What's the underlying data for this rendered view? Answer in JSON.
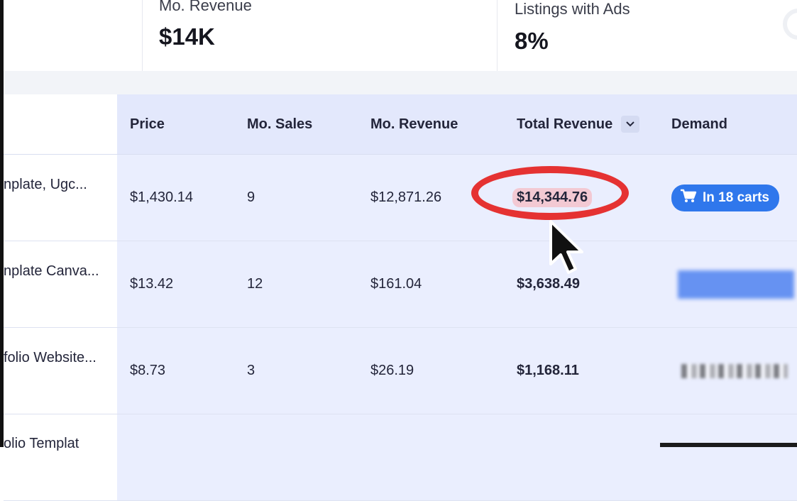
{
  "stats": [
    {
      "label": "Mo. Revenue",
      "value": "$14K"
    },
    {
      "label": "Listings with Ads",
      "value": "8%"
    }
  ],
  "table": {
    "columns": {
      "price": "Price",
      "sales": "Mo. Sales",
      "revenue": "Mo. Revenue",
      "total": "Total Revenue",
      "demand": "Demand"
    },
    "sort_icon": "chevron-down-icon",
    "rows": [
      {
        "title": "nplate, Ugc...",
        "price": "$1,430.14",
        "sales": "9",
        "revenue": "$12,871.26",
        "total": "$14,344.76",
        "demand": "In 18 carts",
        "demand_type": "carts-badge",
        "highlighted": true
      },
      {
        "title": "nplate Canva...",
        "price": "$13.42",
        "sales": "12",
        "revenue": "$161.04",
        "total": "$3,638.49",
        "demand_type": "blurred-badge"
      },
      {
        "title": "folio Website...",
        "price": "$8.73",
        "sales": "3",
        "revenue": "$26.19",
        "total": "$1,168.11",
        "demand_type": "blurred-text"
      },
      {
        "title": "olio Templat",
        "price": "",
        "sales": "",
        "revenue": "",
        "total": "",
        "demand_type": "none"
      }
    ]
  },
  "colors": {
    "accent": "#2f77ec",
    "annotation": "#e53232",
    "header_shade": "#e3e8fc",
    "row_shade": "#eaeefe"
  },
  "icons": {
    "cart": "cart-icon",
    "cursor": "mouse-cursor-icon",
    "loading": "spinner-icon"
  }
}
